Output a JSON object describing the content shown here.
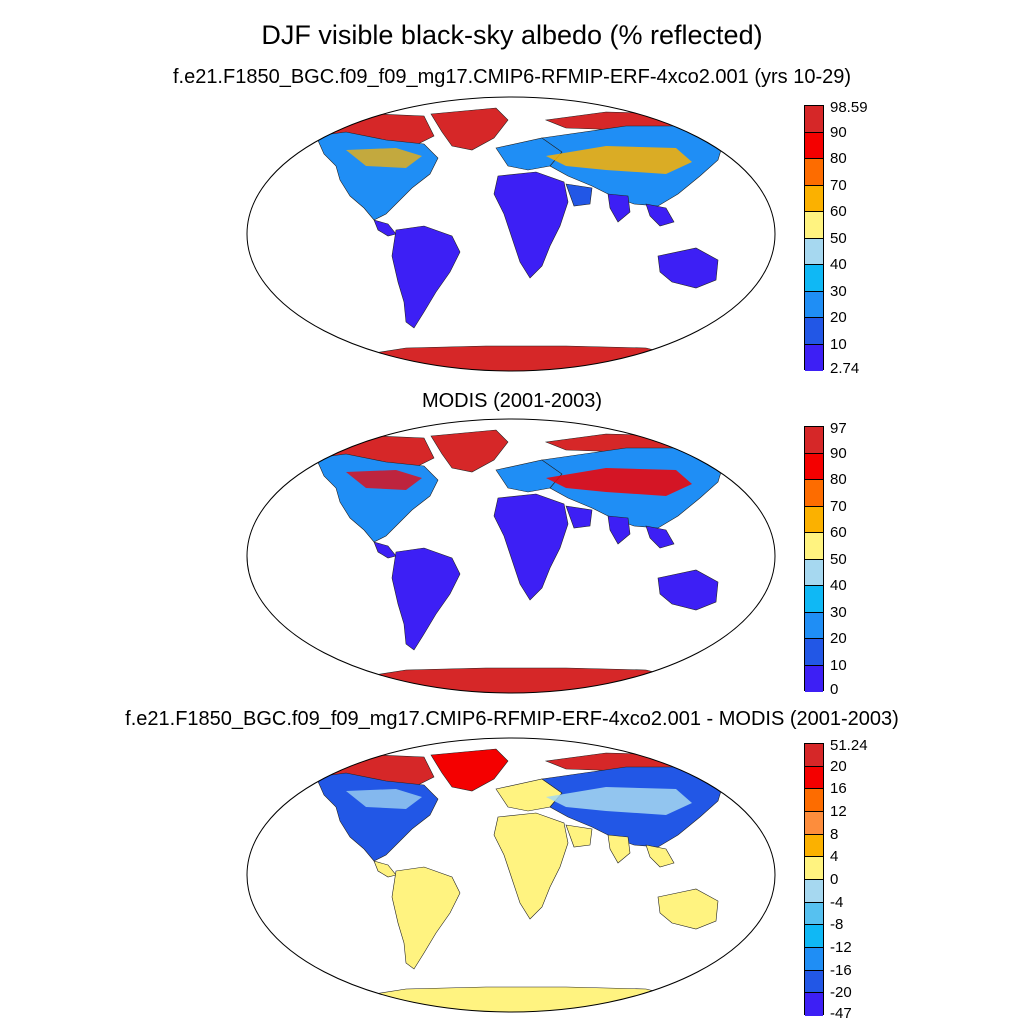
{
  "title": "DJF visible black-sky albedo (% reflected)",
  "panels": [
    {
      "id": "model",
      "title": "f.e21.F1850_BGC.f09_f09_mg17.CMIP6-RFMIP-ERF-4xco2.001 (yrs 10-29)",
      "colorbar": {
        "labels": [
          "98.59",
          "90",
          "80",
          "70",
          "60",
          "50",
          "40",
          "30",
          "20",
          "10",
          "2.74"
        ],
        "colors": [
          "#d62728",
          "#f40000",
          "#fd6c00",
          "#fbb100",
          "#fff380",
          "#a6d8f0",
          "#0fb8f5",
          "#1f8ef5",
          "#2257e6",
          "#3d1ff5"
        ]
      },
      "region_colors": {
        "antarctica": "#d62728",
        "greenland": "#d62728",
        "arctic": "#d62728",
        "high_latitude": "#1f8ef5",
        "mid_latitude": "#1f8ef5",
        "tropics": "#3d1ff5",
        "desert": "#2257e6",
        "band_accent": "#fbb100"
      }
    },
    {
      "id": "obs",
      "title": "MODIS (2001-2003)",
      "colorbar": {
        "labels": [
          "97",
          "90",
          "80",
          "70",
          "60",
          "50",
          "40",
          "30",
          "20",
          "10",
          "0"
        ],
        "colors": [
          "#d62728",
          "#f40000",
          "#fd6c00",
          "#fbb100",
          "#fff380",
          "#a6d8f0",
          "#0fb8f5",
          "#1f8ef5",
          "#2257e6",
          "#3d1ff5"
        ]
      },
      "region_colors": {
        "antarctica": "#d62728",
        "greenland": "#d62728",
        "arctic": "#d62728",
        "high_latitude": "#1f8ef5",
        "mid_latitude": "#1f8ef5",
        "tropics": "#3d1ff5",
        "desert": "#3d1ff5",
        "band_accent": "#f40000"
      }
    },
    {
      "id": "diff",
      "title": "f.e21.F1850_BGC.f09_f09_mg17.CMIP6-RFMIP-ERF-4xco2.001 - MODIS (2001-2003)",
      "colorbar": {
        "labels": [
          "51.24",
          "20",
          "16",
          "12",
          "8",
          "4",
          "0",
          "-4",
          "-8",
          "-12",
          "-16",
          "-20",
          "-47"
        ],
        "colors": [
          "#d62728",
          "#f40000",
          "#fd6c00",
          "#fd8d3c",
          "#fbb100",
          "#fff380",
          "#a6d8f0",
          "#56c1f0",
          "#0fb8f5",
          "#1f8ef5",
          "#2257e6",
          "#3d1ff5"
        ]
      },
      "region_colors": {
        "antarctica": "#fff380",
        "greenland": "#f40000",
        "arctic": "#d62728",
        "high_latitude": "#2257e6",
        "mid_latitude": "#fff380",
        "tropics": "#fff380",
        "desert": "#fff380",
        "band_accent": "#a6d8f0"
      }
    }
  ]
}
